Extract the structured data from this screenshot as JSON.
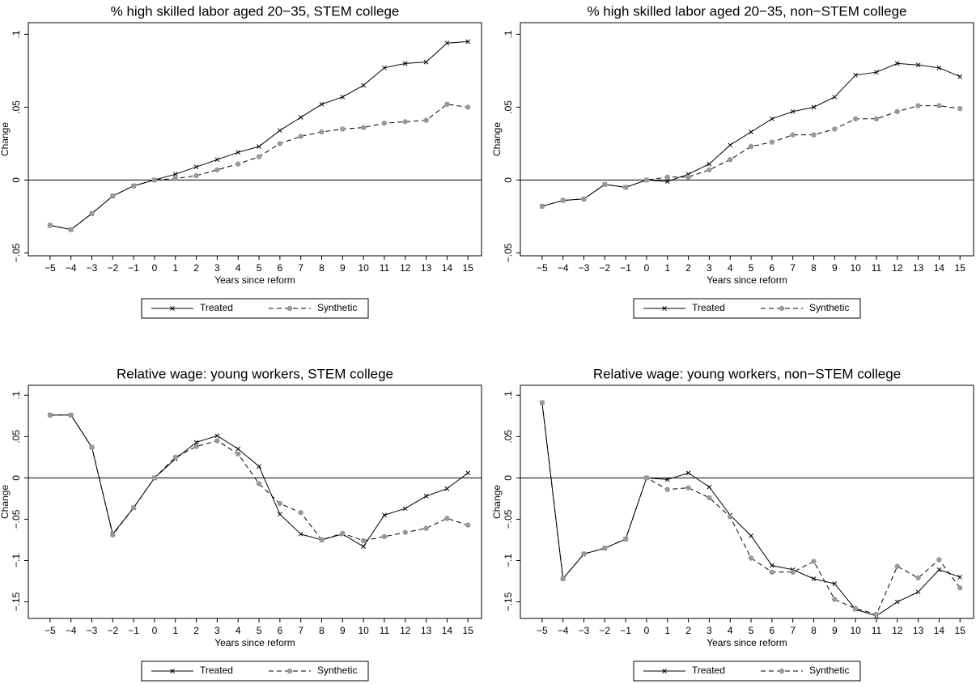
{
  "chart_data": [
    {
      "type": "line",
      "title": "% high skilled labor aged 20−35, STEM college",
      "x_label": "Years since reform",
      "y_label": "Change",
      "x": [
        -5,
        -4,
        -3,
        -2,
        -1,
        0,
        1,
        2,
        3,
        4,
        5,
        6,
        7,
        8,
        9,
        10,
        11,
        12,
        13,
        14,
        15
      ],
      "xlim": [
        -6.04,
        15.65
      ],
      "xticks": [
        {
          "value": -5,
          "label": "−5"
        },
        {
          "value": -4,
          "label": "−4"
        },
        {
          "value": -3,
          "label": "−3"
        },
        {
          "value": -2,
          "label": "−2"
        },
        {
          "value": -1,
          "label": "−1"
        },
        0,
        1,
        2,
        3,
        4,
        5,
        6,
        7,
        8,
        9,
        10,
        11,
        12,
        13,
        14,
        15
      ],
      "ylim": [
        -0.052,
        0.108
      ],
      "yticks": [
        {
          "value": -0.05,
          "label": "−.05"
        },
        0,
        {
          "value": 0.05,
          "label": ".05"
        },
        {
          "value": 0.1,
          "label": ".1"
        }
      ],
      "refline": 0,
      "legend": "bottom",
      "series": [
        {
          "name": "Treated",
          "color": "#000000",
          "marker": "x",
          "marker_color": "#000000",
          "line_style": "solid",
          "values": [
            -0.031,
            -0.034,
            -0.023,
            -0.011,
            -0.004,
            0,
            0.004,
            0.009,
            0.014,
            0.019,
            0.023,
            0.034,
            0.043,
            0.052,
            0.057,
            0.065,
            0.077,
            0.08,
            0.081,
            0.094,
            0.095
          ]
        },
        {
          "name": "Synthetic",
          "color": "#000000",
          "marker": "circle",
          "marker_color": "#999999",
          "line_style": "dashed",
          "values": [
            -0.031,
            -0.034,
            -0.023,
            -0.011,
            -0.004,
            0,
            0.001,
            0.003,
            0.007,
            0.011,
            0.016,
            0.025,
            0.03,
            0.033,
            0.035,
            0.036,
            0.039,
            0.04,
            0.041,
            0.052,
            0.05
          ]
        }
      ]
    },
    {
      "type": "line",
      "title": "% high skilled labor aged 20−35, non−STEM college",
      "x_label": "Years since reform",
      "y_label": "Change",
      "x": [
        -5,
        -4,
        -3,
        -2,
        -1,
        0,
        1,
        2,
        3,
        4,
        5,
        6,
        7,
        8,
        9,
        10,
        11,
        12,
        13,
        14,
        15
      ],
      "xlim": [
        -6.04,
        15.65
      ],
      "xticks": [
        {
          "value": -5,
          "label": "−5"
        },
        {
          "value": -4,
          "label": "−4"
        },
        {
          "value": -3,
          "label": "−3"
        },
        {
          "value": -2,
          "label": "−2"
        },
        {
          "value": -1,
          "label": "−1"
        },
        0,
        1,
        2,
        3,
        4,
        5,
        6,
        7,
        8,
        9,
        10,
        11,
        12,
        13,
        14,
        15
      ],
      "ylim": [
        -0.052,
        0.108
      ],
      "yticks": [
        {
          "value": -0.05,
          "label": "−.05"
        },
        0,
        {
          "value": 0.05,
          "label": ".05"
        },
        {
          "value": 0.1,
          "label": ".1"
        }
      ],
      "refline": 0,
      "legend": "bottom",
      "series": [
        {
          "name": "Treated",
          "color": "#000000",
          "marker": "x",
          "marker_color": "#000000",
          "line_style": "solid",
          "values": [
            -0.018,
            -0.014,
            -0.013,
            -0.003,
            -0.005,
            0,
            -0.001,
            0.004,
            0.011,
            0.024,
            0.033,
            0.042,
            0.047,
            0.05,
            0.057,
            0.072,
            0.074,
            0.08,
            0.079,
            0.077,
            0.071
          ]
        },
        {
          "name": "Synthetic",
          "color": "#000000",
          "marker": "circle",
          "marker_color": "#999999",
          "line_style": "dashed",
          "values": [
            -0.018,
            -0.014,
            -0.013,
            -0.003,
            -0.005,
            0,
            0.002,
            0.002,
            0.007,
            0.014,
            0.023,
            0.026,
            0.031,
            0.031,
            0.035,
            0.042,
            0.042,
            0.047,
            0.051,
            0.051,
            0.049
          ]
        }
      ]
    },
    {
      "type": "line",
      "title": "Relative wage: young workers, STEM college",
      "x_label": "Years since reform",
      "y_label": "Change",
      "x": [
        -5,
        -4,
        -3,
        -2,
        -1,
        0,
        1,
        2,
        3,
        4,
        5,
        6,
        7,
        8,
        9,
        10,
        11,
        12,
        13,
        14,
        15
      ],
      "xlim": [
        -6.04,
        15.65
      ],
      "xticks": [
        {
          "value": -5,
          "label": "−5"
        },
        {
          "value": -4,
          "label": "−4"
        },
        {
          "value": -3,
          "label": "−3"
        },
        {
          "value": -2,
          "label": "−2"
        },
        {
          "value": -1,
          "label": "−1"
        },
        0,
        1,
        2,
        3,
        4,
        5,
        6,
        7,
        8,
        9,
        10,
        11,
        12,
        13,
        14,
        15
      ],
      "ylim": [
        -0.17,
        0.112
      ],
      "yticks": [
        {
          "value": -0.15,
          "label": "−.15"
        },
        {
          "value": -0.1,
          "label": "−.1"
        },
        {
          "value": -0.05,
          "label": "−.05"
        },
        0,
        {
          "value": 0.05,
          "label": ".05"
        },
        {
          "value": 0.1,
          "label": ".1"
        }
      ],
      "refline": 0,
      "legend": "bottom",
      "series": [
        {
          "name": "Treated",
          "color": "#000000",
          "marker": "x",
          "marker_color": "#000000",
          "line_style": "solid",
          "values": [
            0.076,
            0.076,
            0.037,
            -0.068,
            -0.036,
            0,
            0.023,
            0.043,
            0.051,
            0.035,
            0.014,
            -0.044,
            -0.068,
            -0.075,
            -0.068,
            -0.083,
            -0.045,
            -0.037,
            -0.022,
            -0.013,
            0.006
          ]
        },
        {
          "name": "Synthetic",
          "color": "#000000",
          "marker": "circle",
          "marker_color": "#999999",
          "line_style": "dashed",
          "values": [
            0.076,
            0.076,
            0.037,
            -0.069,
            -0.036,
            0,
            0.025,
            0.038,
            0.045,
            0.029,
            -0.007,
            -0.031,
            -0.042,
            -0.075,
            -0.067,
            -0.076,
            -0.071,
            -0.066,
            -0.061,
            -0.049,
            -0.057
          ]
        }
      ]
    },
    {
      "type": "line",
      "title": "Relative wage: young workers, non−STEM college",
      "x_label": "Years since reform",
      "y_label": "Change",
      "x": [
        -5,
        -4,
        -3,
        -2,
        -1,
        0,
        1,
        2,
        3,
        4,
        5,
        6,
        7,
        8,
        9,
        10,
        11,
        12,
        13,
        14,
        15
      ],
      "xlim": [
        -6.04,
        15.65
      ],
      "xticks": [
        {
          "value": -5,
          "label": "−5"
        },
        {
          "value": -4,
          "label": "−4"
        },
        {
          "value": -3,
          "label": "−3"
        },
        {
          "value": -2,
          "label": "−2"
        },
        {
          "value": -1,
          "label": "−1"
        },
        0,
        1,
        2,
        3,
        4,
        5,
        6,
        7,
        8,
        9,
        10,
        11,
        12,
        13,
        14,
        15
      ],
      "ylim": [
        -0.17,
        0.112
      ],
      "yticks": [
        {
          "value": -0.15,
          "label": "−.15"
        },
        {
          "value": -0.1,
          "label": "−.1"
        },
        {
          "value": -0.05,
          "label": "−.05"
        },
        0,
        {
          "value": 0.05,
          "label": ".05"
        },
        {
          "value": 0.1,
          "label": ".1"
        }
      ],
      "refline": 0,
      "legend": "bottom",
      "series": [
        {
          "name": "Treated",
          "color": "#000000",
          "marker": "x",
          "marker_color": "#000000",
          "line_style": "solid",
          "values": [
            0.091,
            -0.122,
            -0.092,
            -0.085,
            -0.074,
            0,
            -0.002,
            0.006,
            -0.011,
            -0.045,
            -0.07,
            -0.106,
            -0.111,
            -0.122,
            -0.128,
            -0.159,
            -0.167,
            -0.15,
            -0.138,
            -0.111,
            -0.12
          ]
        },
        {
          "name": "Synthetic",
          "color": "#000000",
          "marker": "circle",
          "marker_color": "#999999",
          "line_style": "dashed",
          "values": [
            0.091,
            -0.122,
            -0.092,
            -0.085,
            -0.074,
            0,
            -0.014,
            -0.012,
            -0.024,
            -0.047,
            -0.097,
            -0.114,
            -0.114,
            -0.101,
            -0.147,
            -0.158,
            -0.165,
            -0.107,
            -0.121,
            -0.099,
            -0.133
          ]
        }
      ]
    }
  ]
}
